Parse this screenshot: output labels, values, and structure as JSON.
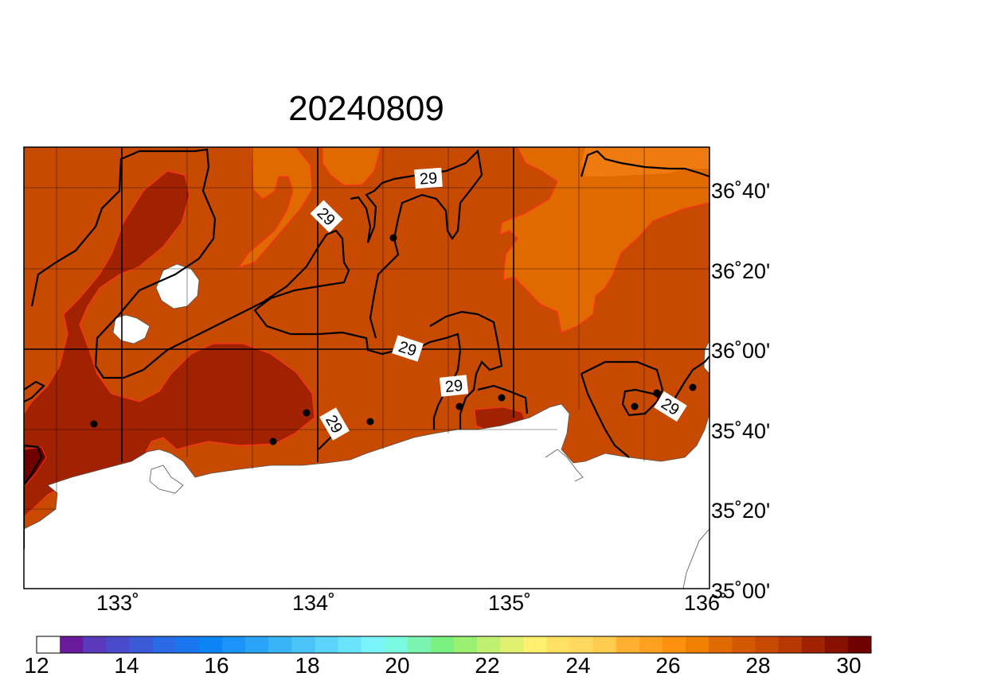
{
  "title": "20240809",
  "map": {
    "lon_range": [
      132.5,
      136.0
    ],
    "lat_range": [
      35.0,
      36.9166
    ],
    "lon_labels": [
      "133˚",
      "134˚",
      "135˚",
      "136˚"
    ],
    "lat_labels": [
      "36˚40'",
      "36˚20'",
      "36˚00'",
      "35˚40'",
      "35˚20'",
      "35˚00'"
    ],
    "contour_labels": [
      "29",
      "29",
      "29",
      "29",
      "29",
      "29"
    ],
    "contour_level": 29,
    "colors": {
      "land": "#ffffff",
      "sst_27": "#e06a00",
      "sst_27_5": "#c84a00",
      "sst_29": "#a02200",
      "sst_30": "#700000",
      "light_orange": "#ee7a10"
    }
  },
  "colorbar": {
    "tick_labels": [
      "12",
      "14",
      "16",
      "18",
      "20",
      "22",
      "24",
      "26",
      "28",
      "30"
    ],
    "colors": [
      "#ffffff",
      "#6a1a9a",
      "#5a3aba",
      "#4a4acc",
      "#3a5ad8",
      "#2a6ae4",
      "#1a76ee",
      "#0a84f6",
      "#1a94f8",
      "#2aa4f8",
      "#3ab4f8",
      "#4ac4f8",
      "#5ad4fa",
      "#6ae4fa",
      "#7af4fa",
      "#7afae0",
      "#7af4b0",
      "#7af080",
      "#9af070",
      "#c0f070",
      "#e0f070",
      "#fff070",
      "#ffe060",
      "#ffd860",
      "#ffcc50",
      "#ffb030",
      "#ffa020",
      "#ff9010",
      "#f08000",
      "#e06a00",
      "#d45800",
      "#c84a00",
      "#b83800",
      "#a02200",
      "#881000",
      "#700000"
    ]
  }
}
